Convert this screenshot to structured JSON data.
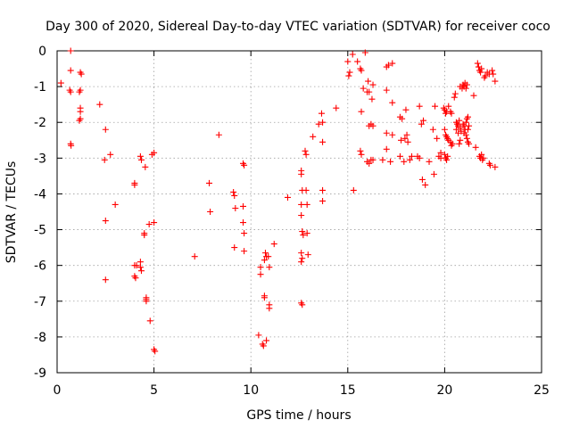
{
  "chart_data": {
    "type": "scatter",
    "title": "Day 300 of 2020, Sidereal Day-to-day VTEC variation (SDTVAR) for receiver coco",
    "xlabel": "GPS time / hours",
    "ylabel": "SDTVAR / TECUs",
    "xlim": [
      0,
      25
    ],
    "ylim": [
      -9,
      0
    ],
    "xticks": [
      "0",
      "5",
      "10",
      "15",
      "20",
      "25"
    ],
    "yticks": [
      "0",
      "-1",
      "-2",
      "-3",
      "-4",
      "-5",
      "-6",
      "-7",
      "-8",
      "-9"
    ],
    "grid": true,
    "marker": "plus",
    "color": "#ff0000",
    "points": [
      [
        0.2,
        -0.9
      ],
      [
        0.7,
        0.0
      ],
      [
        0.7,
        -0.55
      ],
      [
        0.7,
        -1.15
      ],
      [
        0.65,
        -1.1
      ],
      [
        0.7,
        -2.6
      ],
      [
        0.72,
        -2.65
      ],
      [
        1.2,
        -0.6
      ],
      [
        1.25,
        -0.65
      ],
      [
        1.2,
        -1.1
      ],
      [
        1.15,
        -1.15
      ],
      [
        1.2,
        -1.6
      ],
      [
        1.2,
        -1.7
      ],
      [
        1.2,
        -1.9
      ],
      [
        1.15,
        -1.95
      ],
      [
        2.2,
        -1.5
      ],
      [
        2.5,
        -2.2
      ],
      [
        2.45,
        -3.05
      ],
      [
        2.75,
        -2.9
      ],
      [
        2.5,
        -4.75
      ],
      [
        2.5,
        -6.4
      ],
      [
        3.0,
        -4.3
      ],
      [
        4.0,
        -3.7
      ],
      [
        4.0,
        -3.75
      ],
      [
        4.0,
        -6.0
      ],
      [
        4.1,
        -6.0
      ],
      [
        4.0,
        -6.3
      ],
      [
        4.05,
        -6.35
      ],
      [
        4.3,
        -2.95
      ],
      [
        4.35,
        -3.05
      ],
      [
        4.3,
        -5.9
      ],
      [
        4.3,
        -6.05
      ],
      [
        4.35,
        -6.15
      ],
      [
        4.55,
        -3.25
      ],
      [
        4.5,
        -5.1
      ],
      [
        4.5,
        -5.15
      ],
      [
        4.6,
        -6.9
      ],
      [
        4.6,
        -6.95
      ],
      [
        4.6,
        -7.0
      ],
      [
        4.75,
        -4.85
      ],
      [
        4.8,
        -7.55
      ],
      [
        4.9,
        -2.9
      ],
      [
        5.0,
        -2.85
      ],
      [
        5.0,
        -4.8
      ],
      [
        5.0,
        -8.35
      ],
      [
        5.05,
        -8.4
      ],
      [
        7.1,
        -5.75
      ],
      [
        7.85,
        -3.7
      ],
      [
        7.9,
        -4.5
      ],
      [
        8.35,
        -2.35
      ],
      [
        9.1,
        -3.95
      ],
      [
        9.15,
        -4.05
      ],
      [
        9.2,
        -4.4
      ],
      [
        9.15,
        -5.5
      ],
      [
        9.6,
        -3.15
      ],
      [
        9.65,
        -3.2
      ],
      [
        9.6,
        -4.35
      ],
      [
        9.6,
        -4.8
      ],
      [
        9.65,
        -5.1
      ],
      [
        9.65,
        -5.6
      ],
      [
        10.4,
        -7.95
      ],
      [
        10.5,
        -6.05
      ],
      [
        10.5,
        -6.25
      ],
      [
        10.7,
        -5.85
      ],
      [
        10.75,
        -5.65
      ],
      [
        10.8,
        -5.75
      ],
      [
        10.7,
        -6.85
      ],
      [
        10.7,
        -6.9
      ],
      [
        10.6,
        -8.2
      ],
      [
        10.65,
        -8.25
      ],
      [
        10.8,
        -8.1
      ],
      [
        10.9,
        -5.75
      ],
      [
        10.95,
        -6.05
      ],
      [
        10.95,
        -7.1
      ],
      [
        10.95,
        -7.2
      ],
      [
        11.2,
        -5.4
      ],
      [
        11.9,
        -4.1
      ],
      [
        12.6,
        -3.35
      ],
      [
        12.6,
        -3.45
      ],
      [
        12.65,
        -3.9
      ],
      [
        12.6,
        -4.3
      ],
      [
        12.6,
        -4.6
      ],
      [
        12.65,
        -5.05
      ],
      [
        12.7,
        -5.15
      ],
      [
        12.6,
        -5.65
      ],
      [
        12.65,
        -5.8
      ],
      [
        12.6,
        -5.9
      ],
      [
        12.6,
        -7.05
      ],
      [
        12.65,
        -7.1
      ],
      [
        12.8,
        -2.8
      ],
      [
        12.85,
        -2.9
      ],
      [
        12.85,
        -3.9
      ],
      [
        12.9,
        -4.3
      ],
      [
        12.9,
        -5.1
      ],
      [
        12.95,
        -5.7
      ],
      [
        13.2,
        -2.4
      ],
      [
        13.5,
        -2.05
      ],
      [
        13.65,
        -1.75
      ],
      [
        13.7,
        -2.0
      ],
      [
        13.7,
        -2.55
      ],
      [
        13.7,
        -3.9
      ],
      [
        13.7,
        -4.2
      ],
      [
        14.4,
        -1.6
      ],
      [
        15.0,
        -0.3
      ],
      [
        15.1,
        -0.6
      ],
      [
        15.05,
        -0.7
      ],
      [
        15.25,
        -0.1
      ],
      [
        15.3,
        -3.9
      ],
      [
        15.5,
        -0.3
      ],
      [
        15.65,
        -0.5
      ],
      [
        15.7,
        -0.55
      ],
      [
        15.7,
        -1.7
      ],
      [
        15.8,
        -1.05
      ],
      [
        15.65,
        -2.8
      ],
      [
        15.7,
        -2.9
      ],
      [
        15.9,
        -0.05
      ],
      [
        16.05,
        -0.85
      ],
      [
        16.0,
        -1.15
      ],
      [
        16.1,
        -1.15
      ],
      [
        16.1,
        -2.1
      ],
      [
        16.2,
        -2.05
      ],
      [
        16.0,
        -3.1
      ],
      [
        16.1,
        -3.15
      ],
      [
        16.2,
        -3.05
      ],
      [
        16.3,
        -0.95
      ],
      [
        16.25,
        -1.35
      ],
      [
        16.3,
        -2.1
      ],
      [
        16.3,
        -3.05
      ],
      [
        16.8,
        -3.05
      ],
      [
        17.0,
        -0.45
      ],
      [
        17.0,
        -1.1
      ],
      [
        17.0,
        -2.3
      ],
      [
        17.0,
        -2.75
      ],
      [
        17.1,
        -0.4
      ],
      [
        17.3,
        -0.35
      ],
      [
        17.3,
        -1.45
      ],
      [
        17.3,
        -2.35
      ],
      [
        17.2,
        -3.1
      ],
      [
        17.7,
        -1.85
      ],
      [
        17.75,
        -2.5
      ],
      [
        17.8,
        -1.9
      ],
      [
        17.7,
        -2.95
      ],
      [
        17.9,
        -3.1
      ],
      [
        17.95,
        -2.45
      ],
      [
        18.0,
        -1.65
      ],
      [
        18.05,
        -2.35
      ],
      [
        18.1,
        -2.55
      ],
      [
        18.2,
        -3.05
      ],
      [
        18.3,
        -2.95
      ],
      [
        18.6,
        -2.95
      ],
      [
        18.7,
        -3.0
      ],
      [
        18.7,
        -1.55
      ],
      [
        18.8,
        -2.05
      ],
      [
        18.9,
        -1.95
      ],
      [
        18.85,
        -3.6
      ],
      [
        19.0,
        -3.75
      ],
      [
        19.2,
        -3.1
      ],
      [
        19.4,
        -2.2
      ],
      [
        19.45,
        -3.45
      ],
      [
        19.5,
        -1.55
      ],
      [
        19.6,
        -2.45
      ],
      [
        19.7,
        -2.95
      ],
      [
        19.8,
        -2.85
      ],
      [
        19.8,
        -3.0
      ],
      [
        19.95,
        -1.6
      ],
      [
        20.0,
        -1.65
      ],
      [
        20.1,
        -1.7
      ],
      [
        20.05,
        -1.75
      ],
      [
        20.0,
        -2.2
      ],
      [
        20.05,
        -2.35
      ],
      [
        20.1,
        -2.4
      ],
      [
        20.15,
        -2.45
      ],
      [
        20.2,
        -2.5
      ],
      [
        20.0,
        -2.9
      ],
      [
        20.05,
        -3.0
      ],
      [
        20.1,
        -3.05
      ],
      [
        20.15,
        -2.95
      ],
      [
        20.2,
        -1.55
      ],
      [
        20.3,
        -1.7
      ],
      [
        20.35,
        -1.75
      ],
      [
        20.3,
        -2.55
      ],
      [
        20.4,
        -2.6
      ],
      [
        20.35,
        -2.65
      ],
      [
        20.5,
        -1.3
      ],
      [
        20.55,
        -1.2
      ],
      [
        20.6,
        -2.0
      ],
      [
        20.65,
        -2.05
      ],
      [
        20.7,
        -2.1
      ],
      [
        20.6,
        -2.2
      ],
      [
        20.7,
        -2.3
      ],
      [
        20.75,
        -1.95
      ],
      [
        20.8,
        -2.15
      ],
      [
        20.85,
        -2.25
      ],
      [
        20.8,
        -2.5
      ],
      [
        20.75,
        -2.6
      ],
      [
        20.8,
        -1.0
      ],
      [
        20.9,
        -1.05
      ],
      [
        20.95,
        -0.95
      ],
      [
        21.0,
        -1.0
      ],
      [
        21.05,
        -0.9
      ],
      [
        21.1,
        -1.05
      ],
      [
        21.15,
        -0.95
      ],
      [
        20.95,
        -2.05
      ],
      [
        21.0,
        -2.1
      ],
      [
        21.05,
        -2.2
      ],
      [
        21.1,
        -2.0
      ],
      [
        21.15,
        -1.9
      ],
      [
        21.2,
        -1.85
      ],
      [
        21.0,
        -2.3
      ],
      [
        21.1,
        -2.35
      ],
      [
        21.15,
        -2.45
      ],
      [
        21.2,
        -2.55
      ],
      [
        21.25,
        -2.6
      ],
      [
        21.2,
        -2.2
      ],
      [
        21.25,
        -2.1
      ],
      [
        21.5,
        -1.25
      ],
      [
        21.6,
        -2.7
      ],
      [
        21.7,
        -0.35
      ],
      [
        21.75,
        -0.45
      ],
      [
        21.8,
        -0.55
      ],
      [
        21.85,
        -0.6
      ],
      [
        21.9,
        -0.5
      ],
      [
        21.8,
        -2.95
      ],
      [
        21.85,
        -3.0
      ],
      [
        21.9,
        -2.9
      ],
      [
        21.95,
        -3.05
      ],
      [
        22.0,
        -3.0
      ],
      [
        22.05,
        -0.75
      ],
      [
        22.1,
        -0.7
      ],
      [
        22.2,
        -0.6
      ],
      [
        22.3,
        -0.65
      ],
      [
        22.3,
        -3.15
      ],
      [
        22.35,
        -3.2
      ],
      [
        22.45,
        -0.55
      ],
      [
        22.5,
        -0.65
      ],
      [
        22.6,
        -0.85
      ],
      [
        22.6,
        -3.25
      ]
    ]
  }
}
